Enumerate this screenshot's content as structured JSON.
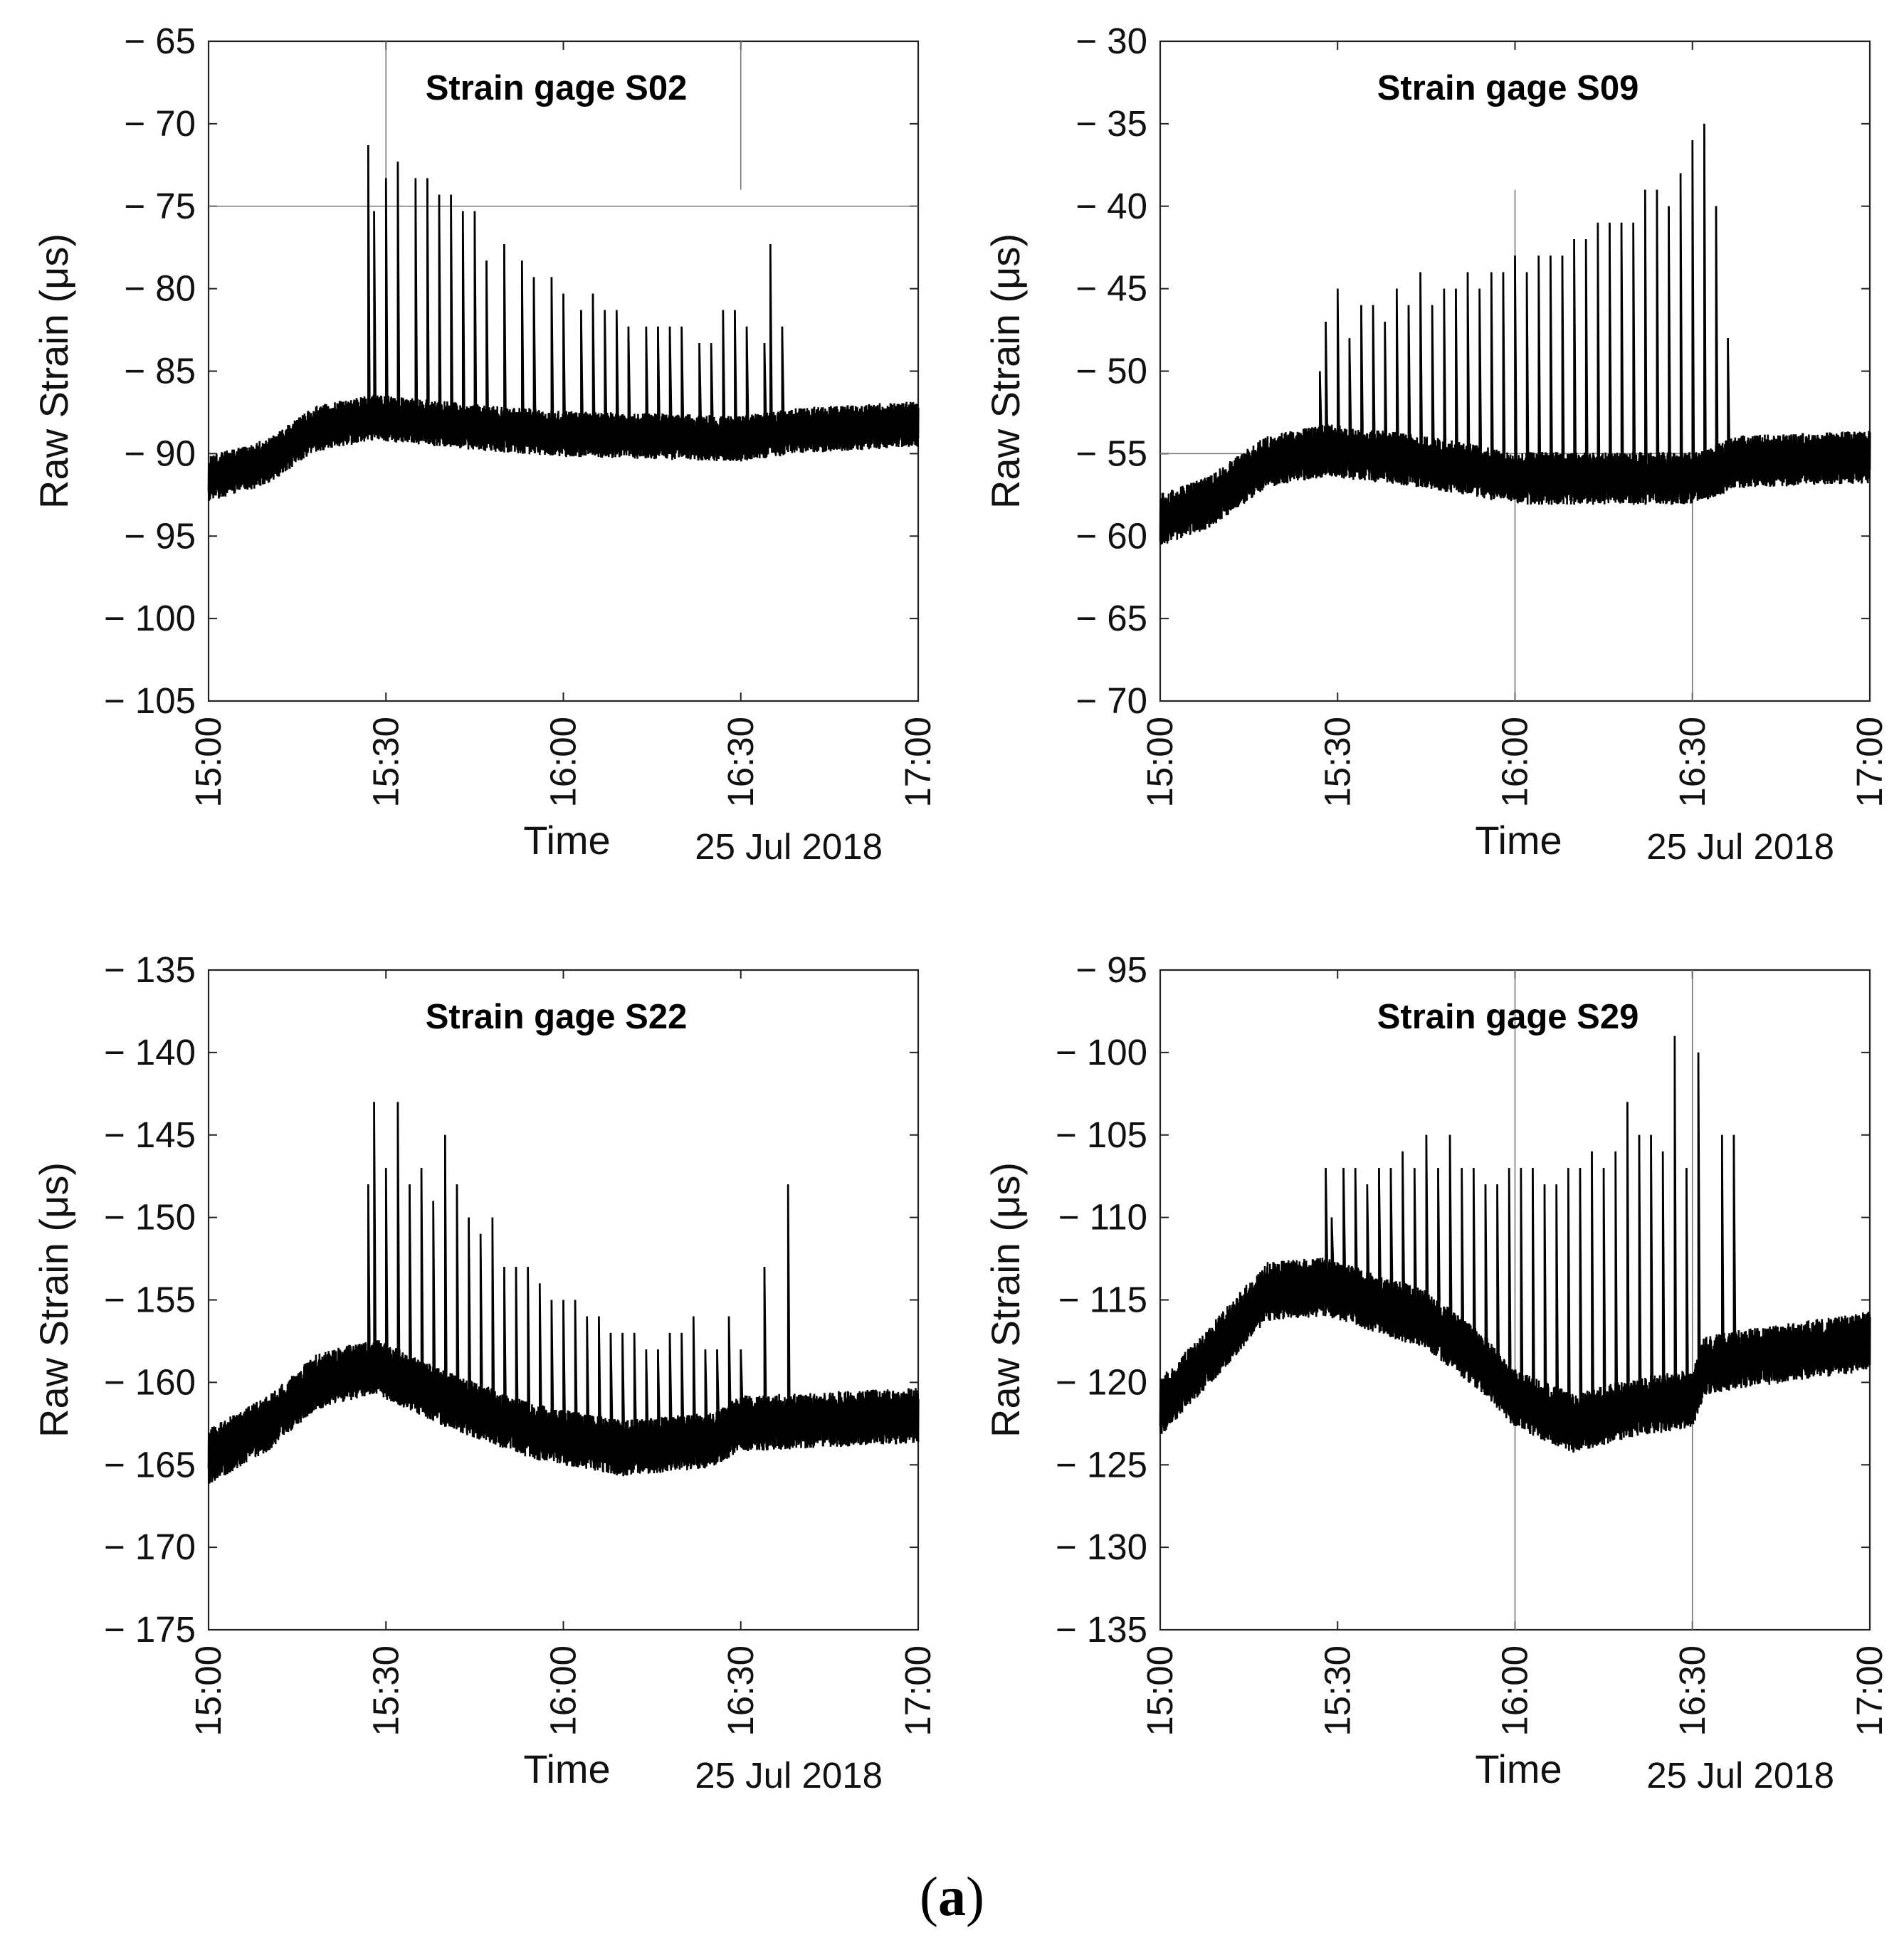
{
  "figure_caption": {
    "open": "(",
    "letter": "a",
    "close": ")"
  },
  "chart_data": [
    {
      "type": "line",
      "title": "Strain gage S02",
      "xlabel": "Time",
      "date_label": "25 Jul 2018",
      "ylabel": "Raw Strain (μs)",
      "xlim": [
        "15:00",
        "17:00"
      ],
      "ylim": [
        -105,
        -65
      ],
      "xticks": [
        "15:00",
        "15:30",
        "16:00",
        "16:30",
        "17:00"
      ],
      "yticks": [
        "− 65",
        "− 70",
        "− 75",
        "− 80",
        "− 85",
        "− 90",
        "− 95",
        "− 100",
        "− 105"
      ],
      "ytick_values": [
        -65,
        -70,
        -75,
        -80,
        -85,
        -90,
        -95,
        -100,
        -105
      ],
      "color": "#000000",
      "reference_lines": {
        "horizontal": [
          -75
        ],
        "vertical": [
          {
            "x": "15:30",
            "from": -65,
            "to": -74
          },
          {
            "x": "16:30",
            "from": -65,
            "to": -74
          }
        ]
      },
      "baseline": {
        "x": [
          "15:00",
          "15:10",
          "15:18",
          "15:28",
          "15:45",
          "16:00",
          "16:30",
          "16:40",
          "17:00"
        ],
        "y": [
          -91.5,
          -90.5,
          -88.5,
          -87.8,
          -88.4,
          -88.8,
          -89.1,
          -88.6,
          -88.2
        ]
      },
      "noise_band": 1.4,
      "peaks": {
        "x": [
          "15:27",
          "15:28",
          "15:30",
          "15:32",
          "15:35",
          "15:37",
          "15:39",
          "15:41",
          "15:43",
          "15:45",
          "15:47",
          "15:50",
          "15:53",
          "15:55",
          "15:58",
          "16:00",
          "16:03",
          "16:05",
          "16:07",
          "16:09",
          "16:11",
          "16:14",
          "16:16",
          "16:18",
          "16:20",
          "16:23",
          "16:25",
          "16:27",
          "16:29",
          "16:31",
          "16:34",
          "16:35",
          "16:37"
        ],
        "y": [
          -71.3,
          -75.3,
          -73.3,
          -72.3,
          -73.3,
          -73.3,
          -74.3,
          -74.3,
          -75.3,
          -75.3,
          -78.3,
          -77.3,
          -78.3,
          -79.3,
          -79.3,
          -80.3,
          -81.3,
          -80.3,
          -81.3,
          -81.3,
          -82.3,
          -82.3,
          -82.3,
          -82.3,
          -82.3,
          -83.3,
          -83.3,
          -81.3,
          -81.3,
          -82.3,
          -83.3,
          -77.3,
          -82.3
        ]
      }
    },
    {
      "type": "line",
      "title": "Strain gage S09",
      "xlabel": "Time",
      "date_label": "25 Jul 2018",
      "ylabel": "Raw Strain (μs)",
      "xlim": [
        "15:00",
        "17:00"
      ],
      "ylim": [
        -70,
        -30
      ],
      "xticks": [
        "15:00",
        "15:30",
        "16:00",
        "16:30",
        "17:00"
      ],
      "yticks": [
        "− 30",
        "− 35",
        "− 40",
        "− 45",
        "− 50",
        "− 55",
        "− 60",
        "− 65",
        "− 70"
      ],
      "ytick_values": [
        -30,
        -35,
        -40,
        -45,
        -50,
        -55,
        -60,
        -65,
        -70
      ],
      "color": "#000000",
      "reference_lines": {
        "horizontal": [
          -55
        ],
        "vertical": [
          {
            "x": "16:00",
            "from": -39,
            "to": -70
          },
          {
            "x": "16:30",
            "from": -39,
            "to": -70
          }
        ]
      },
      "baseline": {
        "x": [
          "15:00",
          "15:08",
          "15:18",
          "15:28",
          "15:45",
          "16:00",
          "16:30",
          "16:38",
          "17:00"
        ],
        "y": [
          -59,
          -58,
          -55.5,
          -54.8,
          -55.5,
          -56.5,
          -56.5,
          -55.5,
          -55.2
        ]
      },
      "noise_band": 1.6,
      "peaks": {
        "x": [
          "15:27",
          "15:28",
          "15:30",
          "15:32",
          "15:34",
          "15:36",
          "15:38",
          "15:40",
          "15:42",
          "15:44",
          "15:46",
          "15:48",
          "15:50",
          "15:52",
          "15:54",
          "15:56",
          "15:58",
          "16:00",
          "16:02",
          "16:04",
          "16:06",
          "16:08",
          "16:10",
          "16:12",
          "16:14",
          "16:16",
          "16:18",
          "16:20",
          "16:22",
          "16:24",
          "16:26",
          "16:28",
          "16:30",
          "16:32",
          "16:34",
          "16:36"
        ],
        "y": [
          -50,
          -47,
          -45,
          -48,
          -46,
          -46,
          -47,
          -45,
          -46,
          -44,
          -46,
          -45,
          -45,
          -44,
          -45,
          -44,
          -44,
          -43,
          -44,
          -43,
          -43,
          -43,
          -42,
          -42,
          -41,
          -41,
          -41,
          -41,
          -39,
          -39,
          -40,
          -38,
          -36,
          -35,
          -40,
          -48
        ]
      }
    },
    {
      "type": "line",
      "title": "Strain gage S22",
      "xlabel": "Time",
      "date_label": "25 Jul 2018",
      "ylabel": "Raw Strain (μs)",
      "xlim": [
        "15:00",
        "17:00"
      ],
      "ylim": [
        -175,
        -135
      ],
      "xticks": [
        "15:00",
        "15:30",
        "16:00",
        "16:30",
        "17:00"
      ],
      "yticks": [
        "− 135",
        "− 140",
        "− 145",
        "− 150",
        "− 155",
        "− 160",
        "− 165",
        "− 170",
        "− 175"
      ],
      "ytick_values": [
        -135,
        -140,
        -145,
        -150,
        -155,
        -160,
        -165,
        -170,
        -175
      ],
      "color": "#000000",
      "reference_lines": {
        "horizontal": [],
        "vertical": []
      },
      "baseline": {
        "x": [
          "15:00",
          "15:10",
          "15:18",
          "15:28",
          "15:40",
          "15:55",
          "16:10",
          "16:25",
          "16:30",
          "17:00"
        ],
        "y": [
          -164.5,
          -162.5,
          -160,
          -159,
          -161,
          -163,
          -164,
          -163.5,
          -162.5,
          -162
        ]
      },
      "noise_band": 1.7,
      "peaks": {
        "x": [
          "15:27",
          "15:28",
          "15:30",
          "15:32",
          "15:34",
          "15:36",
          "15:38",
          "15:40",
          "15:42",
          "15:44",
          "15:46",
          "15:48",
          "15:50",
          "15:52",
          "15:54",
          "15:56",
          "15:58",
          "16:00",
          "16:02",
          "16:04",
          "16:06",
          "16:08",
          "16:10",
          "16:12",
          "16:14",
          "16:16",
          "16:18",
          "16:20",
          "16:22",
          "16:24",
          "16:26",
          "16:28",
          "16:30",
          "16:34",
          "16:38"
        ],
        "y": [
          -148,
          -143,
          -147,
          -143,
          -148,
          -147,
          -149,
          -145,
          -148,
          -150,
          -151,
          -150,
          -153,
          -153,
          -153,
          -154,
          -155,
          -155,
          -155,
          -156,
          -156,
          -157,
          -157,
          -157,
          -158,
          -158,
          -157,
          -157,
          -156,
          -158,
          -158,
          -156,
          -158,
          -153,
          -148
        ]
      }
    },
    {
      "type": "line",
      "title": "Strain gage S29",
      "xlabel": "Time",
      "date_label": "25 Jul 2018",
      "ylabel": "Raw Strain (μs)",
      "xlim": [
        "15:00",
        "17:00"
      ],
      "ylim": [
        -135,
        -95
      ],
      "xticks": [
        "15:00",
        "15:30",
        "16:00",
        "16:30",
        "17:00"
      ],
      "yticks": [
        "− 95",
        "− 100",
        "− 105",
        "− 110",
        "− 115",
        "− 120",
        "− 125",
        "− 130",
        "− 135"
      ],
      "ytick_values": [
        -95,
        -100,
        -105,
        -110,
        -115,
        -120,
        -125,
        -130,
        -135
      ],
      "color": "#000000",
      "reference_lines": {
        "horizontal": [],
        "vertical": [
          {
            "x": "16:00",
            "from": -95,
            "to": -135
          },
          {
            "x": "16:30",
            "from": -95,
            "to": -135
          }
        ]
      },
      "baseline": {
        "x": [
          "15:00",
          "15:08",
          "15:18",
          "15:28",
          "15:45",
          "15:55",
          "16:00",
          "16:10",
          "16:20",
          "16:30",
          "16:32",
          "16:40",
          "17:00"
        ],
        "y": [
          -121.5,
          -118.5,
          -114.5,
          -114.2,
          -116.2,
          -119,
          -121,
          -122.5,
          -121.5,
          -121,
          -119,
          -118.5,
          -117.5
        ]
      },
      "noise_band": 1.8,
      "peaks": {
        "x": [
          "15:28",
          "15:29",
          "15:31",
          "15:33",
          "15:35",
          "15:37",
          "15:39",
          "15:41",
          "15:43",
          "15:45",
          "15:47",
          "15:49",
          "15:51",
          "15:53",
          "15:55",
          "15:57",
          "15:59",
          "16:01",
          "16:03",
          "16:05",
          "16:07",
          "16:09",
          "16:11",
          "16:13",
          "16:15",
          "16:17",
          "16:19",
          "16:21",
          "16:23",
          "16:25",
          "16:27",
          "16:29",
          "16:31",
          "16:35",
          "16:37"
        ],
        "y": [
          -107,
          -110,
          -107,
          -107,
          -108,
          -107,
          -107,
          -106,
          -107,
          -105,
          -107,
          -105,
          -107,
          -107,
          -108,
          -108,
          -107,
          -107,
          -107,
          -108,
          -108,
          -107,
          -107,
          -106,
          -107,
          -106,
          -103,
          -105,
          -105,
          -106,
          -99,
          -107,
          -100,
          -105,
          -105
        ]
      }
    }
  ]
}
